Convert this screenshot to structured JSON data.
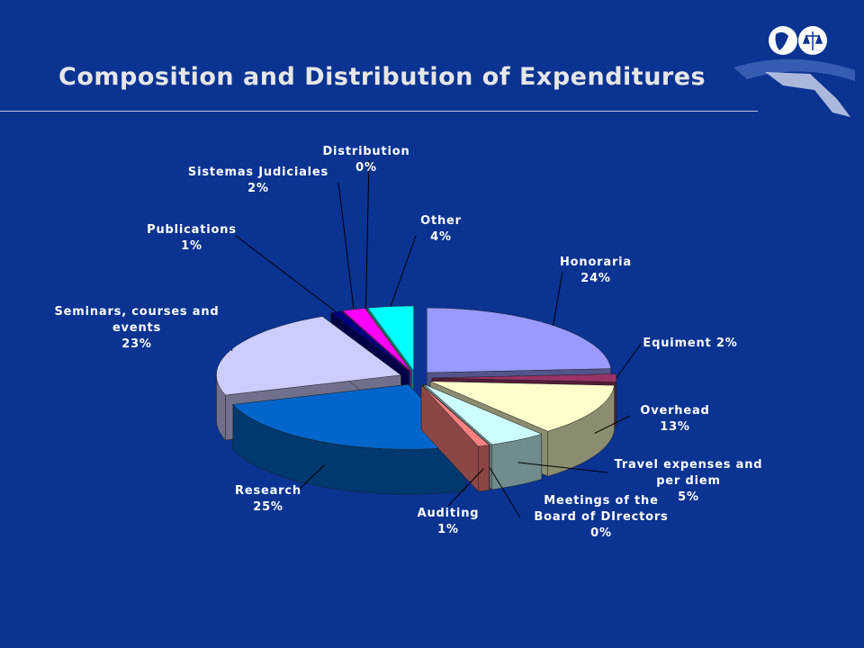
{
  "chart_data": {
    "type": "pie",
    "title": "Composition and Distribution of Expenditures",
    "categories": [
      "Honoraria",
      "Equiment",
      "Overhead",
      "Travel expenses and per diem",
      "Meetings of the Board of DIrectors",
      "Auditing",
      "Research",
      "Seminars, courses and events",
      "Publications",
      "Sistemas Judiciales",
      "Distribution",
      "Other"
    ],
    "values": [
      24,
      2,
      13,
      5,
      0,
      1,
      25,
      23,
      1,
      2,
      0,
      4
    ],
    "value_labels": [
      "24%",
      "2%",
      "13%",
      "5%",
      "0%",
      "1%",
      "25%",
      "23%",
      "1%",
      "2%",
      "0%",
      "4%"
    ],
    "colors": [
      "#9999ff",
      "#993366",
      "#ffffcc",
      "#ccffff",
      "#660066",
      "#ff8080",
      "#0066cc",
      "#ccccff",
      "#000080",
      "#ff00ff",
      "#ffff66",
      "#00ffff"
    ]
  }
}
